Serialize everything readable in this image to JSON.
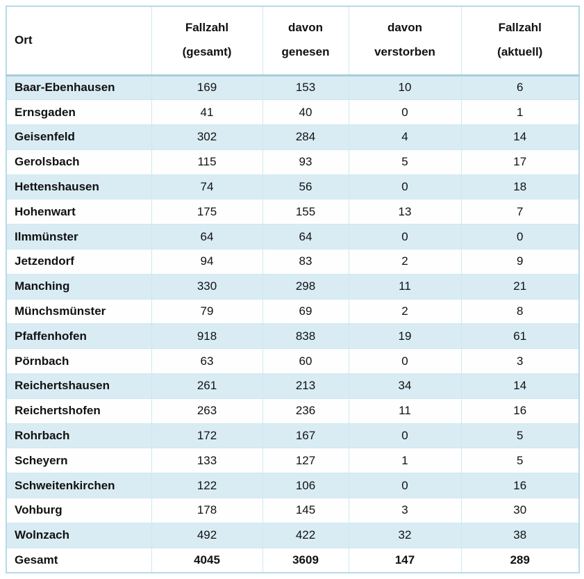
{
  "table": {
    "header": {
      "ort": "Ort",
      "cols": [
        {
          "line1": "Fallzahl",
          "line2": "(gesamt)"
        },
        {
          "line1": "davon",
          "line2": "genesen"
        },
        {
          "line1": "davon",
          "line2": "verstorben"
        },
        {
          "line1": "Fallzahl",
          "line2": "(aktuell)"
        }
      ]
    },
    "rows": [
      {
        "ort": "Baar-Ebenhausen",
        "gesamt": "169",
        "genesen": "153",
        "verstorben": "10",
        "aktuell": "6"
      },
      {
        "ort": "Ernsgaden",
        "gesamt": "41",
        "genesen": "40",
        "verstorben": "0",
        "aktuell": "1"
      },
      {
        "ort": "Geisenfeld",
        "gesamt": "302",
        "genesen": "284",
        "verstorben": "4",
        "aktuell": "14"
      },
      {
        "ort": "Gerolsbach",
        "gesamt": "115",
        "genesen": "93",
        "verstorben": "5",
        "aktuell": "17"
      },
      {
        "ort": "Hettenshausen",
        "gesamt": "74",
        "genesen": "56",
        "verstorben": "0",
        "aktuell": "18"
      },
      {
        "ort": "Hohenwart",
        "gesamt": "175",
        "genesen": "155",
        "verstorben": "13",
        "aktuell": "7"
      },
      {
        "ort": "Ilmmünster",
        "gesamt": "64",
        "genesen": "64",
        "verstorben": "0",
        "aktuell": "0"
      },
      {
        "ort": "Jetzendorf",
        "gesamt": "94",
        "genesen": "83",
        "verstorben": "2",
        "aktuell": "9"
      },
      {
        "ort": "Manching",
        "gesamt": "330",
        "genesen": "298",
        "verstorben": "11",
        "aktuell": "21"
      },
      {
        "ort": "Münchsmünster",
        "gesamt": "79",
        "genesen": "69",
        "verstorben": "2",
        "aktuell": "8"
      },
      {
        "ort": "Pfaffenhofen",
        "gesamt": "918",
        "genesen": "838",
        "verstorben": "19",
        "aktuell": "61"
      },
      {
        "ort": "Pörnbach",
        "gesamt": "63",
        "genesen": "60",
        "verstorben": "0",
        "aktuell": "3"
      },
      {
        "ort": "Reichertshausen",
        "gesamt": "261",
        "genesen": "213",
        "verstorben": "34",
        "aktuell": "14"
      },
      {
        "ort": "Reichertshofen",
        "gesamt": "263",
        "genesen": "236",
        "verstorben": "11",
        "aktuell": "16"
      },
      {
        "ort": "Rohrbach",
        "gesamt": "172",
        "genesen": "167",
        "verstorben": "0",
        "aktuell": "5"
      },
      {
        "ort": "Scheyern",
        "gesamt": "133",
        "genesen": "127",
        "verstorben": "1",
        "aktuell": "5"
      },
      {
        "ort": "Schweitenkirchen",
        "gesamt": "122",
        "genesen": "106",
        "verstorben": "0",
        "aktuell": "16"
      },
      {
        "ort": "Vohburg",
        "gesamt": "178",
        "genesen": "145",
        "verstorben": "3",
        "aktuell": "30"
      },
      {
        "ort": "Wolnzach",
        "gesamt": "492",
        "genesen": "422",
        "verstorben": "32",
        "aktuell": "38"
      }
    ],
    "total": {
      "ort": "Gesamt",
      "gesamt": "4045",
      "genesen": "3609",
      "verstorben": "147",
      "aktuell": "289"
    },
    "colors": {
      "row_shaded": "#d9ecf4",
      "row_plain": "#fefefe",
      "cell_border": "#cfe7f1",
      "header_separator": "#a8ced9",
      "outer_border": "#b5daea",
      "text": "#111111"
    }
  }
}
